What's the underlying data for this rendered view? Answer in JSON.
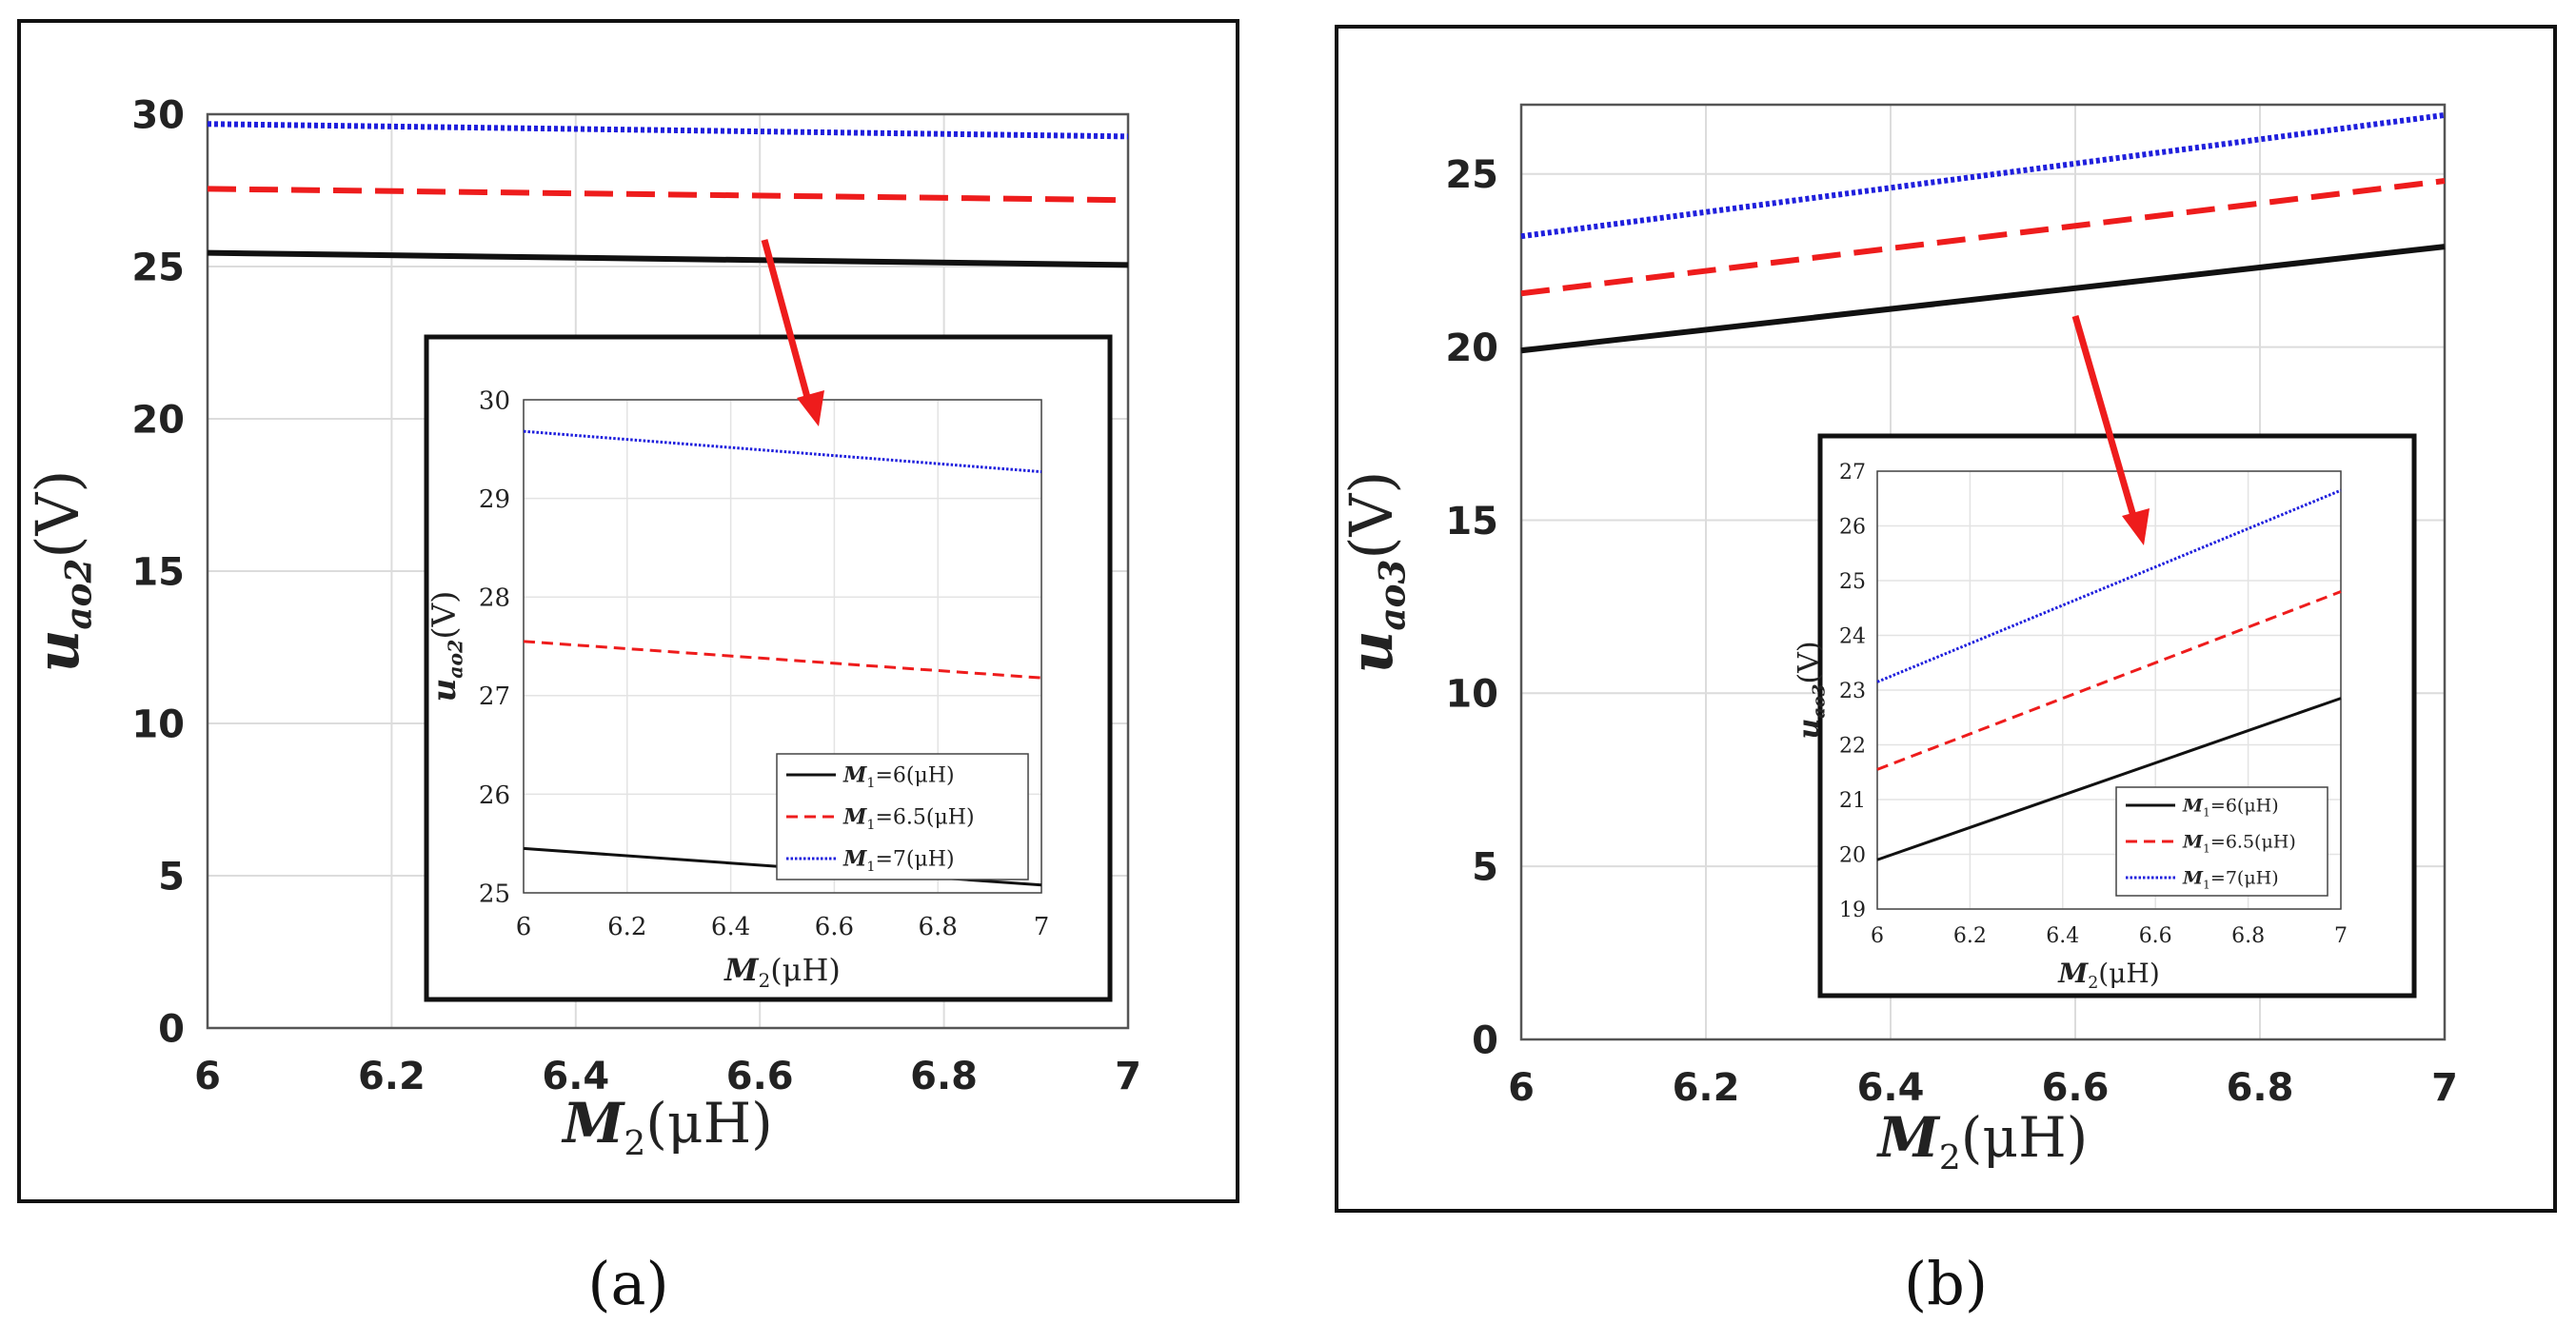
{
  "figure": {
    "captions": [
      "(a)",
      "(b)"
    ]
  },
  "colors": {
    "black": "#111111",
    "red": "#ee1c1c",
    "blue": "#1f1fdd",
    "arrow": "#ee1c1c"
  },
  "chart_data": [
    {
      "id": "a-main",
      "type": "line",
      "xlabel_main": "M",
      "xlabel_sub": "2",
      "xlabel_unit": "(μH)",
      "ylabel_main": "u",
      "ylabel_sub": "ao2",
      "ylabel_unit": "(V)",
      "xlim": [
        6,
        7
      ],
      "ylim": [
        0,
        30
      ],
      "xticks": [
        "6",
        "6.2",
        "6.4",
        "6.6",
        "6.8",
        "7"
      ],
      "yticks": [
        "0",
        "5",
        "10",
        "15",
        "20",
        "25",
        "30"
      ],
      "grid": true,
      "series": [
        {
          "name": "M1=6(μH)",
          "style": "solid",
          "color": "#111111",
          "x": [
            6,
            7
          ],
          "y": [
            25.45,
            25.05
          ]
        },
        {
          "name": "M1=6.5(μH)",
          "style": "dashed",
          "color": "#ee1c1c",
          "x": [
            6,
            7
          ],
          "y": [
            27.55,
            27.18
          ]
        },
        {
          "name": "M1=7(μH)",
          "style": "dotted",
          "color": "#1f1fdd",
          "x": [
            6,
            7
          ],
          "y": [
            29.68,
            29.27
          ]
        }
      ]
    },
    {
      "id": "a-inset",
      "type": "line",
      "xlabel_main": "M",
      "xlabel_sub": "2",
      "xlabel_unit": "(μH)",
      "ylabel_main": "u",
      "ylabel_sub": "ao2",
      "ylabel_unit": "(V)",
      "xlim": [
        6,
        7
      ],
      "ylim": [
        25,
        30
      ],
      "xticks": [
        "6",
        "6.2",
        "6.4",
        "6.6",
        "6.8",
        "7"
      ],
      "yticks": [
        "25",
        "26",
        "27",
        "28",
        "29",
        "30"
      ],
      "grid": true,
      "legend": "bottom-right",
      "legend_entries": [
        {
          "main": "M",
          "sub": "1",
          "rest": "=6(μH)"
        },
        {
          "main": "M",
          "sub": "1",
          "rest": "=6.5(μH)"
        },
        {
          "main": "M",
          "sub": "1",
          "rest": "=7(μH)"
        }
      ],
      "series": [
        {
          "name": "M1=6(μH)",
          "style": "solid",
          "color": "#111111",
          "x": [
            6,
            7
          ],
          "y": [
            25.45,
            25.08
          ]
        },
        {
          "name": "M1=6.5(μH)",
          "style": "dashed",
          "color": "#ee1c1c",
          "x": [
            6,
            7
          ],
          "y": [
            27.55,
            27.18
          ]
        },
        {
          "name": "M1=7(μH)",
          "style": "dotted",
          "color": "#1f1fdd",
          "x": [
            6,
            7
          ],
          "y": [
            29.68,
            29.27
          ]
        }
      ]
    },
    {
      "id": "b-main",
      "type": "line",
      "xlabel_main": "M",
      "xlabel_sub": "2",
      "xlabel_unit": "(μH)",
      "ylabel_main": "u",
      "ylabel_sub": "ao3",
      "ylabel_unit": "(V)",
      "xlim": [
        6,
        7
      ],
      "ylim": [
        0,
        27
      ],
      "xticks": [
        "6",
        "6.2",
        "6.4",
        "6.6",
        "6.8",
        "7"
      ],
      "yticks": [
        "0",
        "5",
        "10",
        "15",
        "20",
        "25"
      ],
      "grid": true,
      "series": [
        {
          "name": "M1=6(μH)",
          "style": "solid",
          "color": "#111111",
          "x": [
            6,
            7
          ],
          "y": [
            19.9,
            22.9
          ]
        },
        {
          "name": "M1=6.5(μH)",
          "style": "dashed",
          "color": "#ee1c1c",
          "x": [
            6,
            7
          ],
          "y": [
            21.55,
            24.8
          ]
        },
        {
          "name": "M1=7(μH)",
          "style": "dotted",
          "color": "#1f1fdd",
          "x": [
            6,
            7
          ],
          "y": [
            23.2,
            26.7
          ]
        }
      ]
    },
    {
      "id": "b-inset",
      "type": "line",
      "xlabel_main": "M",
      "xlabel_sub": "2",
      "xlabel_unit": "(μH)",
      "ylabel_main": "u",
      "ylabel_sub": "ao3",
      "ylabel_unit": "(V)",
      "xlim": [
        6,
        7
      ],
      "ylim": [
        19,
        27
      ],
      "xticks": [
        "6",
        "6.2",
        "6.4",
        "6.6",
        "6.8",
        "7"
      ],
      "yticks": [
        "19",
        "20",
        "21",
        "22",
        "23",
        "24",
        "25",
        "26",
        "27"
      ],
      "grid": true,
      "legend": "bottom-right",
      "legend_entries": [
        {
          "main": "M",
          "sub": "1",
          "rest": "=6(μH)"
        },
        {
          "main": "M",
          "sub": "1",
          "rest": "=6.5(μH)"
        },
        {
          "main": "M",
          "sub": "1",
          "rest": "=7(μH)"
        }
      ],
      "series": [
        {
          "name": "M1=6(μH)",
          "style": "solid",
          "color": "#111111",
          "x": [
            6,
            7
          ],
          "y": [
            19.9,
            22.85
          ]
        },
        {
          "name": "M1=6.5(μH)",
          "style": "dashed",
          "color": "#ee1c1c",
          "x": [
            6,
            7
          ],
          "y": [
            21.55,
            24.8
          ]
        },
        {
          "name": "M1=7(μH)",
          "style": "dotted",
          "color": "#1f1fdd",
          "x": [
            6,
            7
          ],
          "y": [
            23.15,
            26.65
          ]
        }
      ]
    }
  ]
}
